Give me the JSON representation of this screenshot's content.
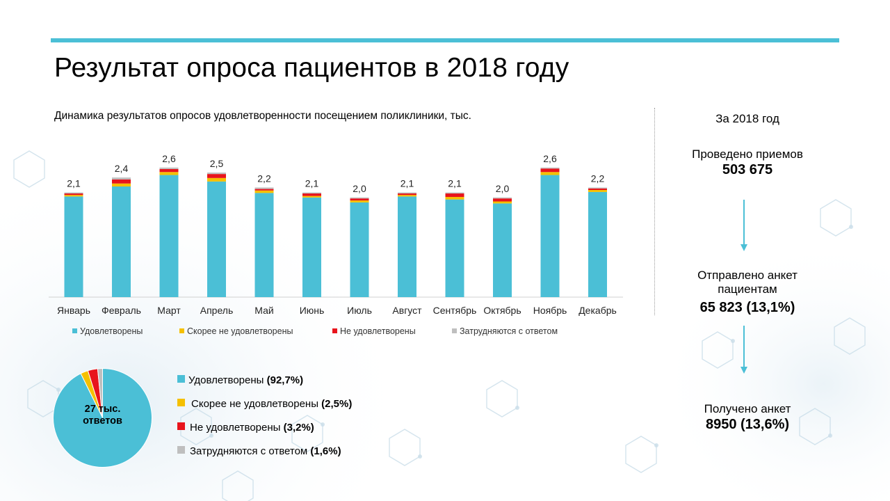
{
  "title": "Результат опроса пациентов в 2018 году",
  "subtitle": "Динамика  результатов опросов удовлетворенности посещением поликлиники,  тыс.",
  "colors": {
    "satisfied": "#4bbfd6",
    "rather_not": "#f5c000",
    "not_satisfied": "#e8141c",
    "undecided": "#bfbfbf",
    "accent": "#4bbfd6"
  },
  "chart_data": [
    {
      "type": "bar",
      "stacked": true,
      "title": "Динамика  результатов опросов удовлетворенности посещением поликлиники,  тыс.",
      "categories": [
        "Январь",
        "Февраль",
        "Март",
        "Апрель",
        "Май",
        "Июнь",
        "Июль",
        "Август",
        "Сентябрь",
        "Октябрь",
        "Ноябрь",
        "Декабрь"
      ],
      "totals": [
        2.1,
        2.4,
        2.6,
        2.5,
        2.2,
        2.1,
        2.0,
        2.1,
        2.1,
        2.0,
        2.6,
        2.2
      ],
      "total_labels": [
        "2,1",
        "2,4",
        "2,6",
        "2,5",
        "2,2",
        "2,1",
        "2,0",
        "2,1",
        "2,1",
        "2,0",
        "2,6",
        "2,2"
      ],
      "series": [
        {
          "name": "Удовлетворены",
          "values": [
            2.02,
            2.22,
            2.45,
            2.32,
            2.09,
            2.0,
            1.9,
            2.02,
            1.96,
            1.88,
            2.45,
            2.11
          ]
        },
        {
          "name": "Скорее не удовлетворены",
          "values": [
            0.03,
            0.06,
            0.06,
            0.07,
            0.05,
            0.03,
            0.04,
            0.03,
            0.05,
            0.04,
            0.06,
            0.04
          ]
        },
        {
          "name": "Не удовлетворены",
          "values": [
            0.03,
            0.08,
            0.06,
            0.08,
            0.03,
            0.05,
            0.04,
            0.03,
            0.07,
            0.06,
            0.07,
            0.03
          ]
        },
        {
          "name": "Затрудняются с ответом",
          "values": [
            0.02,
            0.04,
            0.03,
            0.03,
            0.03,
            0.02,
            0.02,
            0.02,
            0.02,
            0.02,
            0.02,
            0.02
          ]
        }
      ],
      "ylim": [
        0,
        3.0
      ],
      "grid": false,
      "legend": "bottom"
    },
    {
      "type": "pie",
      "center_label": "27 тыс. ответов",
      "labels": [
        "Удовлетворены",
        "Скорее не удовлетворены",
        "Не удовлетворены",
        "Затрудняются с ответом"
      ],
      "values": [
        92.7,
        2.5,
        3.2,
        1.6
      ],
      "value_labels": [
        "(92,7%)",
        "(2,5%)",
        "(3,2%)",
        "(1,6%)"
      ],
      "legend": "right"
    }
  ],
  "side": {
    "period": "За 2018 год",
    "step1_label": "Проведено приемов",
    "step1_value": "503 675",
    "step2_label_line1": "Отправлено анкет",
    "step2_label_line2": "пациентам",
    "step2_value": "65 823 (13,1%)",
    "step3_label": "Получено анкет",
    "step3_value": "8950 (13,6%)"
  }
}
